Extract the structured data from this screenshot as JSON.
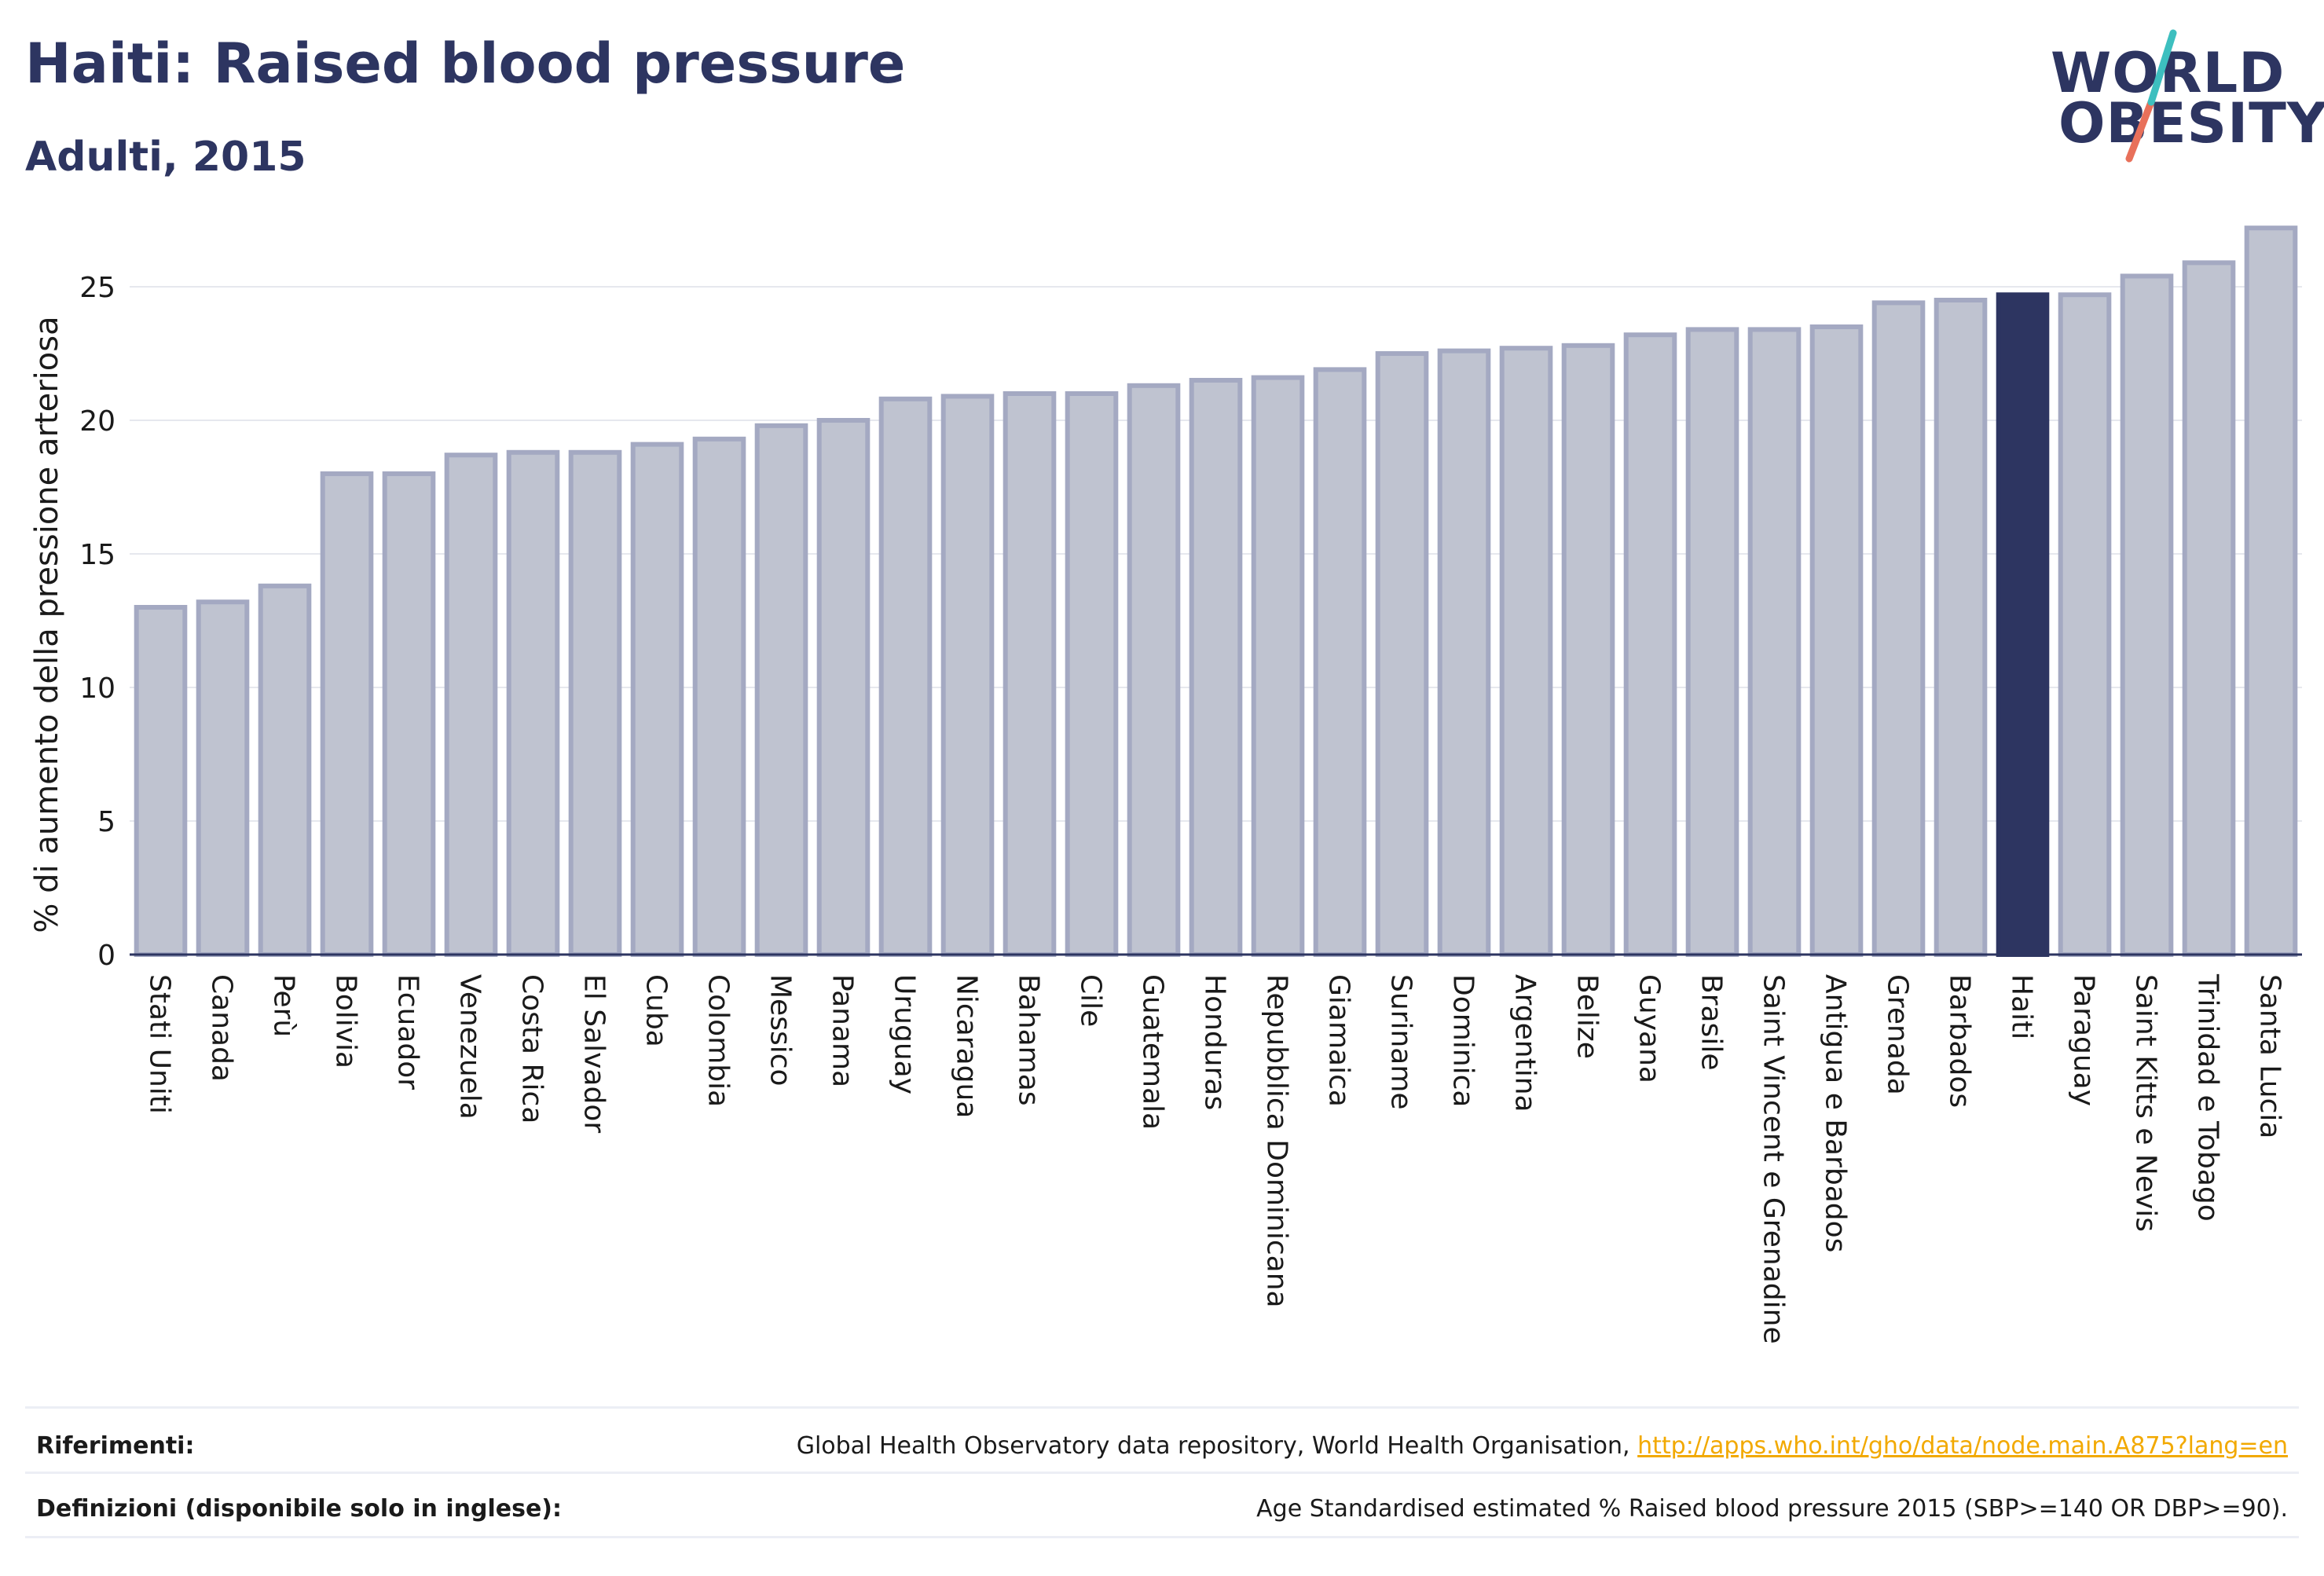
{
  "header": {
    "title": "Haiti: Raised blood pressure",
    "subtitle": "Adulti, 2015",
    "logo_line1": "WORLD",
    "logo_line2": "OBESITY"
  },
  "colors": {
    "title": "#2d3561",
    "bar": "#bfc3d0",
    "bar_stroke": "#a4a9c2",
    "highlight": "#2d3561",
    "grid": "#e6e8ee",
    "link": "#f2a900",
    "logo_teal": "#3dbfbf",
    "logo_coral": "#e8705a"
  },
  "chart_data": {
    "type": "bar",
    "ylabel": "% di aumento della pressione arteriosa",
    "ylim": [
      0,
      27.5
    ],
    "yticks": [
      0,
      5,
      10,
      15,
      20,
      25
    ],
    "grid": true,
    "highlight": "Haiti",
    "categories": [
      "Stati Uniti",
      "Canada",
      "Perù",
      "Bolivia",
      "Ecuador",
      "Venezuela",
      "Costa Rica",
      "El Salvador",
      "Cuba",
      "Colombia",
      "Messico",
      "Panama",
      "Uruguay",
      "Nicaragua",
      "Bahamas",
      "Cile",
      "Guatemala",
      "Honduras",
      "Repubblica Dominicana",
      "Giamaica",
      "Suriname",
      "Dominica",
      "Argentina",
      "Belize",
      "Guyana",
      "Brasile",
      "Saint Vincent e Grenadine",
      "Antigua e Barbados",
      "Grenada",
      "Barbados",
      "Haiti",
      "Paraguay",
      "Saint Kitts e Nevis",
      "Trinidad e Tobago",
      "Santa Lucia"
    ],
    "values": [
      13.0,
      13.2,
      13.8,
      18.0,
      18.0,
      18.7,
      18.8,
      18.8,
      19.1,
      19.3,
      19.8,
      20.0,
      20.8,
      20.9,
      21.0,
      21.0,
      21.3,
      21.5,
      21.6,
      21.9,
      22.5,
      22.6,
      22.7,
      22.8,
      23.2,
      23.4,
      23.4,
      23.5,
      24.4,
      24.5,
      24.7,
      24.7,
      25.4,
      25.9,
      27.2
    ]
  },
  "footer": {
    "references_label": "Riferimenti:",
    "references_text": "Global Health Observatory data repository, World Health Organisation,",
    "references_link": "http://apps.who.int/gho/data/node.main.A875?lang=en",
    "definitions_label": "Definizioni (disponibile solo in inglese):",
    "definitions_text": "Age Standardised estimated % Raised blood pressure 2015 (SBP>=140 OR DBP>=90)."
  }
}
